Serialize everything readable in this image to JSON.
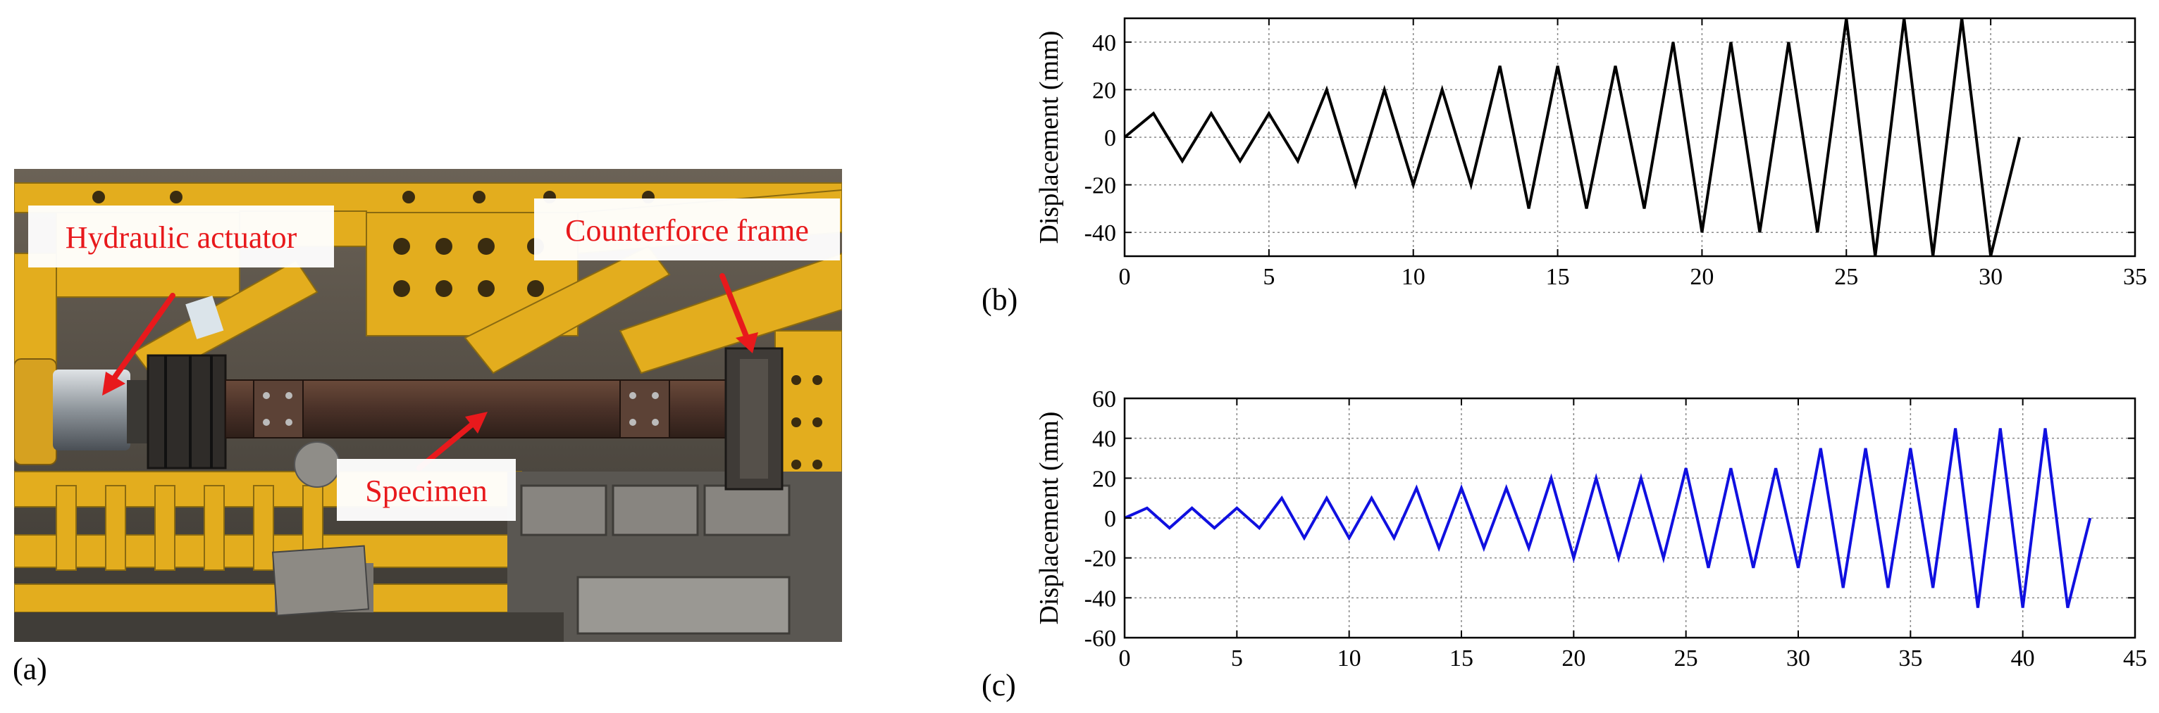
{
  "photo": {
    "panel_label": "(a)",
    "labels": {
      "actuator": "Hydraulic actuator",
      "frame": "Counterforce frame",
      "specimen": "Specimen"
    },
    "colors": {
      "label_text": "#e8191c",
      "arrow": "#e8191c",
      "frame_yellow": "#e3ad1e"
    }
  },
  "chart_data": [
    {
      "type": "line",
      "panel_label": "(b)",
      "title": "",
      "xlabel": "",
      "ylabel": "Displacement (mm)",
      "xlim": [
        0,
        35
      ],
      "ylim": [
        -50,
        50
      ],
      "xticks": [
        0,
        5,
        10,
        15,
        20,
        25,
        30,
        35
      ],
      "yticks": [
        -40,
        -20,
        0,
        20,
        40
      ],
      "grid": true,
      "color": "#000000",
      "series": [
        {
          "x": [
            0,
            1,
            2,
            3,
            4,
            5,
            6,
            7,
            8,
            9,
            10,
            11,
            12,
            13,
            14,
            15,
            16,
            17,
            18,
            19,
            20,
            21,
            22,
            23,
            24,
            25,
            26,
            27,
            28,
            29,
            30,
            31
          ],
          "values": [
            0,
            10,
            -10,
            10,
            -10,
            10,
            -10,
            20,
            -20,
            20,
            -20,
            20,
            -20,
            30,
            -30,
            30,
            -30,
            30,
            -30,
            40,
            -40,
            40,
            -40,
            40,
            -40,
            50,
            -50,
            50,
            -50,
            50,
            -50,
            0
          ]
        }
      ]
    },
    {
      "type": "line",
      "panel_label": "(c)",
      "title": "",
      "xlabel": "",
      "ylabel": "Displacement (mm)",
      "xlim": [
        0,
        45
      ],
      "ylim": [
        -60,
        60
      ],
      "xticks": [
        0,
        5,
        10,
        15,
        20,
        25,
        30,
        35,
        40,
        45
      ],
      "yticks": [
        -60,
        -40,
        -20,
        0,
        20,
        40,
        60
      ],
      "grid": true,
      "color": "#1010e0",
      "series": [
        {
          "x": [
            0,
            1,
            2,
            3,
            4,
            5,
            6,
            7,
            8,
            9,
            10,
            11,
            12,
            13,
            14,
            15,
            16,
            17,
            18,
            19,
            20,
            21,
            22,
            23,
            24,
            25,
            26,
            27,
            28,
            29,
            30,
            31,
            32,
            33,
            34,
            35,
            36,
            37,
            38,
            39,
            40,
            41,
            42,
            43
          ],
          "values": [
            0,
            5,
            -5,
            5,
            -5,
            5,
            -5,
            10,
            -10,
            10,
            -10,
            10,
            -10,
            15,
            -15,
            15,
            -15,
            15,
            -15,
            20,
            -20,
            20,
            -20,
            20,
            -20,
            25,
            -25,
            25,
            -25,
            25,
            -25,
            35,
            -35,
            35,
            -35,
            35,
            -35,
            45,
            -45,
            45,
            -45,
            45,
            -45,
            0
          ]
        }
      ]
    }
  ]
}
